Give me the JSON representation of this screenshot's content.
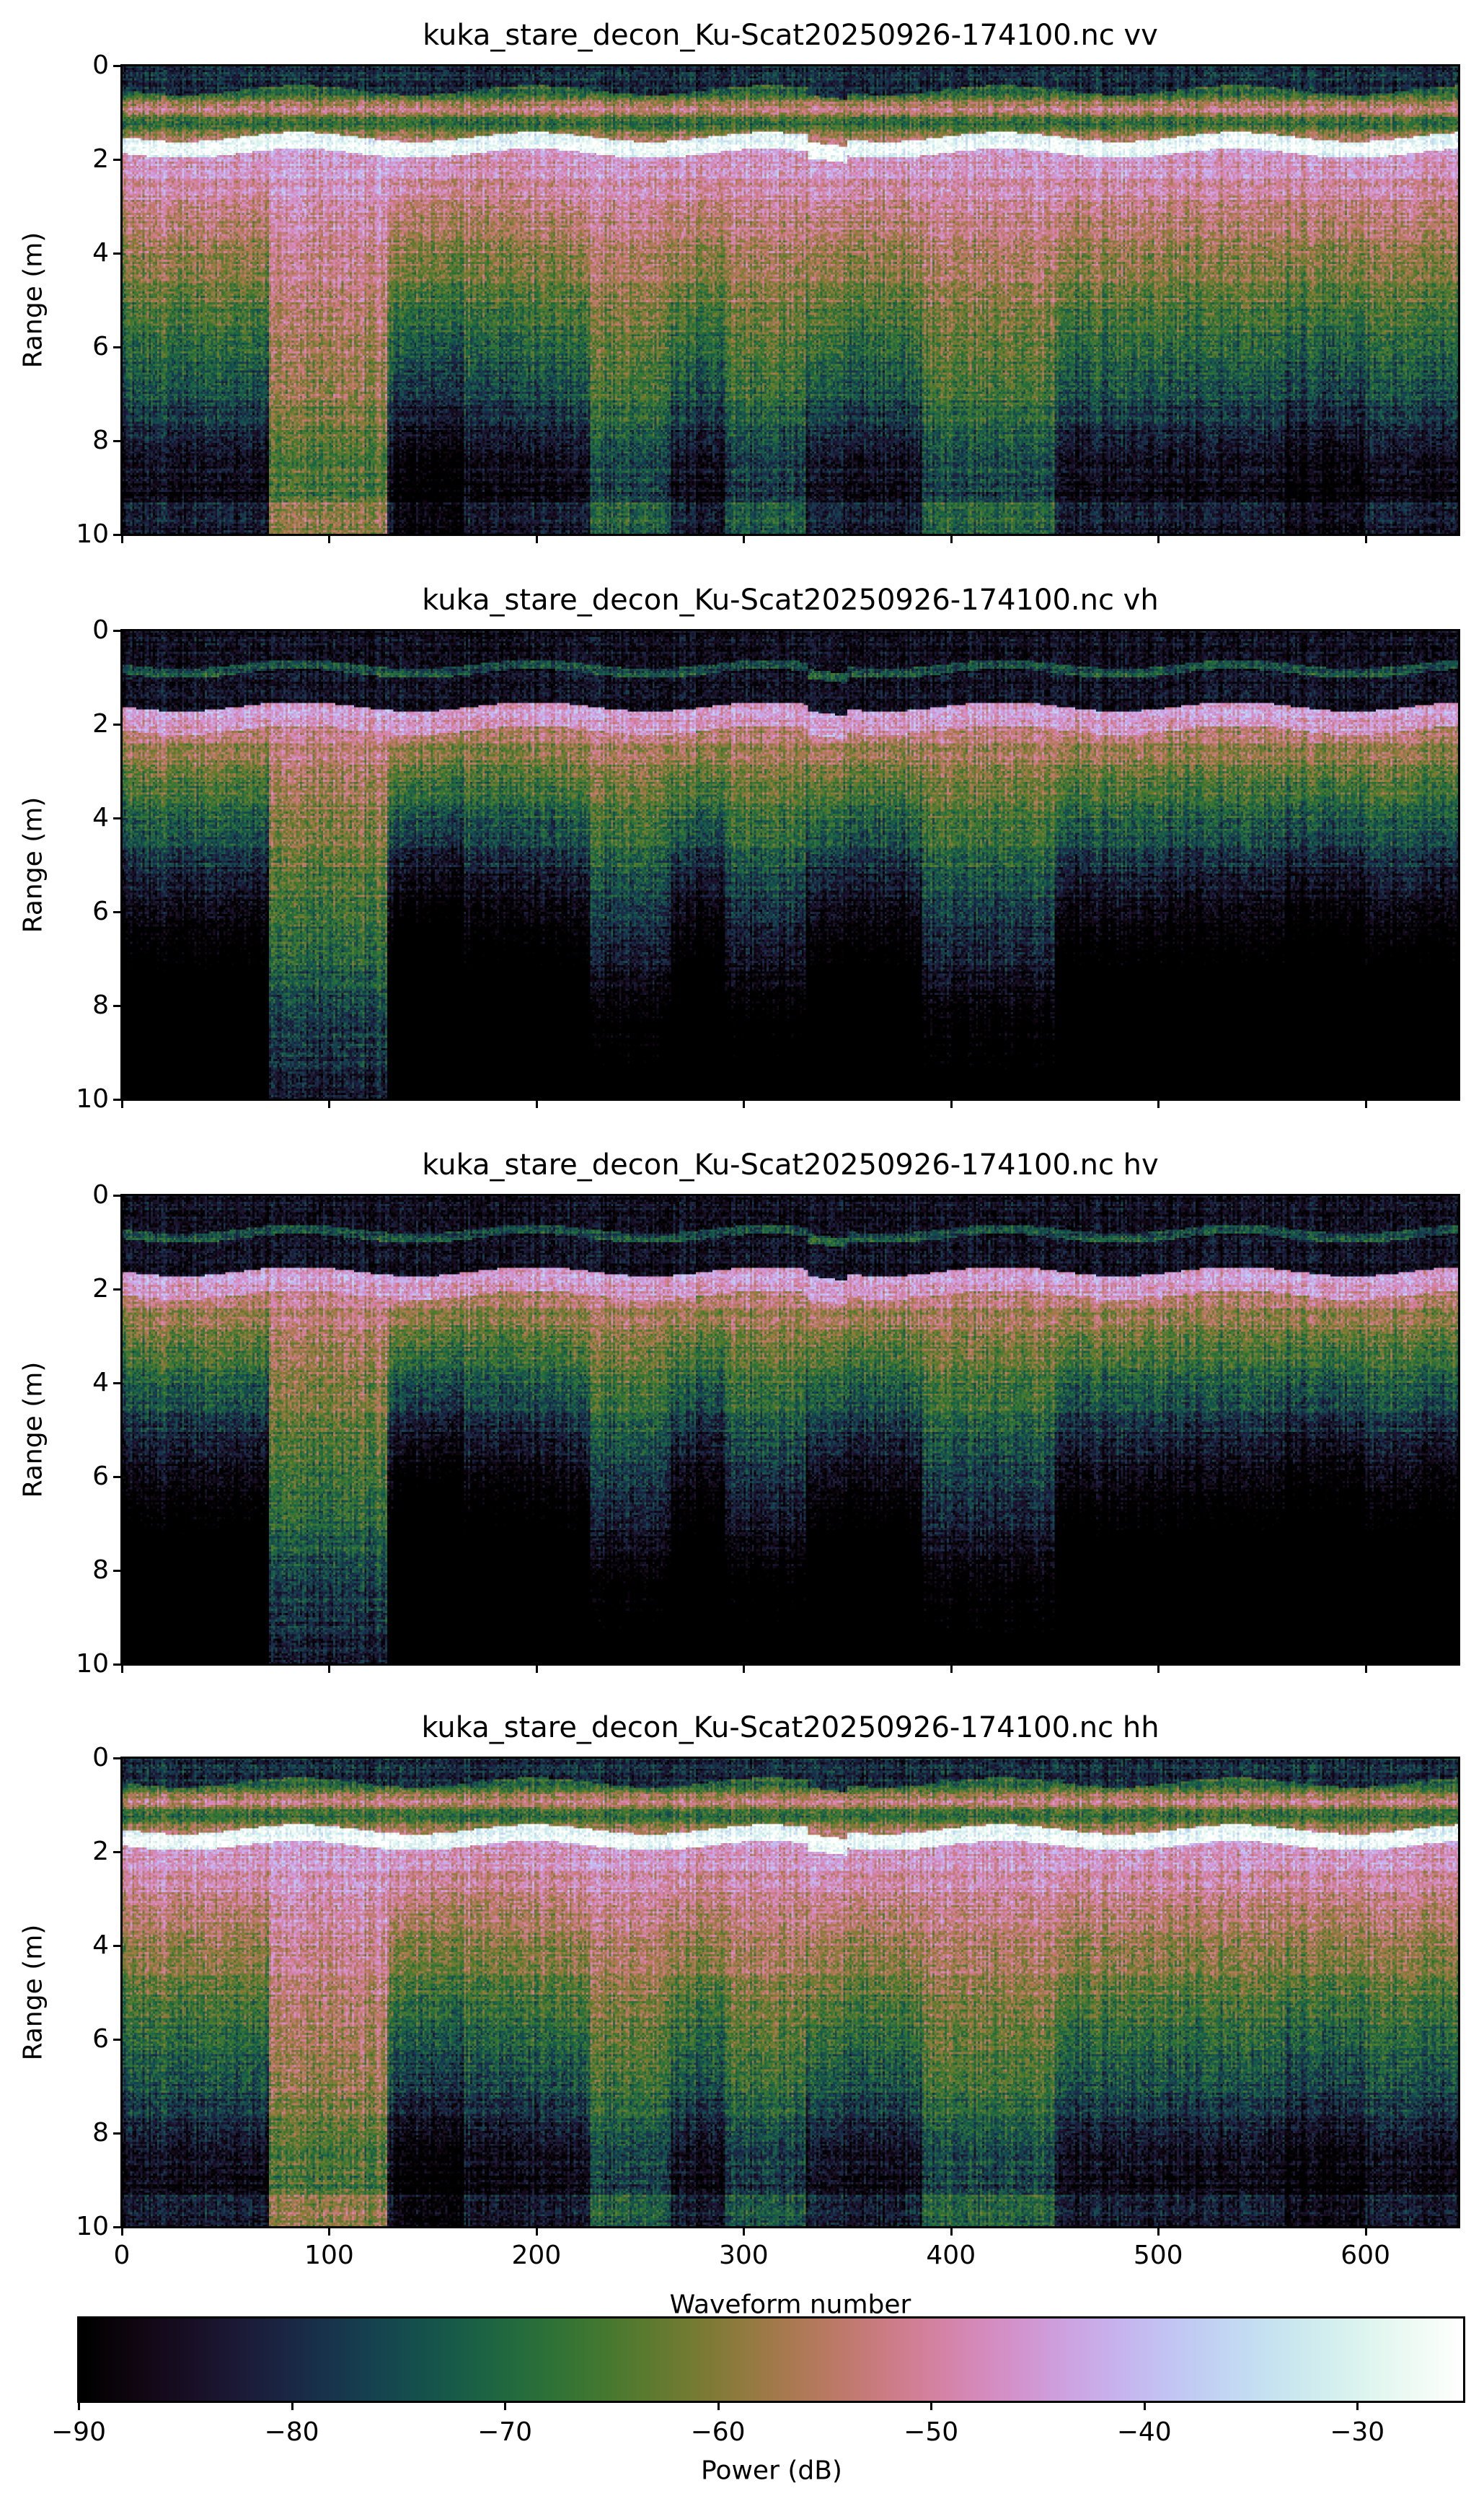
{
  "chart_data": {
    "type": "heatmap",
    "colormap": "cubehelix",
    "panels": [
      {
        "title": "kuka_stare_decon_Ku-Scat20250926-174100.nc vv",
        "pol": "vv"
      },
      {
        "title": "kuka_stare_decon_Ku-Scat20250926-174100.nc vh",
        "pol": "vh"
      },
      {
        "title": "kuka_stare_decon_Ku-Scat20250926-174100.nc hv",
        "pol": "hv"
      },
      {
        "title": "kuka_stare_decon_Ku-Scat20250926-174100.nc hh",
        "pol": "hh"
      }
    ],
    "xlabel": "Waveform number",
    "ylabel": "Range (m)",
    "xlim": [
      0,
      645
    ],
    "ylim": [
      10,
      0
    ],
    "xticks": [
      "0",
      "100",
      "200",
      "300",
      "400",
      "500",
      "600"
    ],
    "yticks": [
      "0",
      "2",
      "4",
      "6",
      "8",
      "10"
    ],
    "surface_range_m": 1.6,
    "colorbar": {
      "label": "Power (dB)",
      "range": [
        -90,
        -25
      ],
      "ticks": [
        "−90",
        "−80",
        "−70",
        "−60",
        "−50",
        "−40",
        "−30"
      ],
      "orientation": "horizontal"
    }
  }
}
